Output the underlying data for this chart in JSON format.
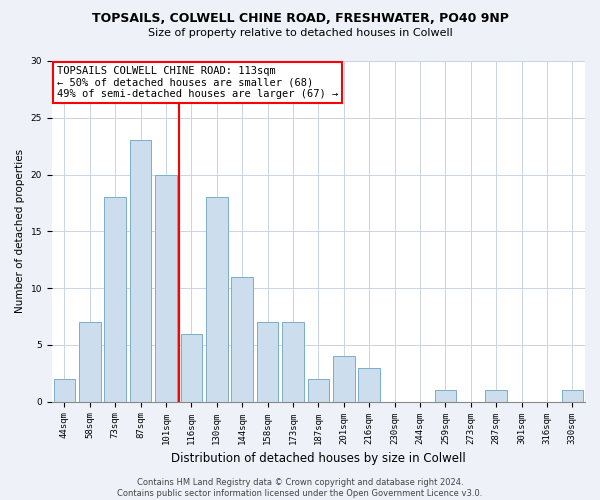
{
  "title_line1": "TOPSAILS, COLWELL CHINE ROAD, FRESHWATER, PO40 9NP",
  "title_line2": "Size of property relative to detached houses in Colwell",
  "xlabel": "Distribution of detached houses by size in Colwell",
  "ylabel": "Number of detached properties",
  "categories": [
    "44sqm",
    "58sqm",
    "73sqm",
    "87sqm",
    "101sqm",
    "116sqm",
    "130sqm",
    "144sqm",
    "158sqm",
    "173sqm",
    "187sqm",
    "201sqm",
    "216sqm",
    "230sqm",
    "244sqm",
    "259sqm",
    "273sqm",
    "287sqm",
    "301sqm",
    "316sqm",
    "330sqm"
  ],
  "values": [
    2,
    7,
    18,
    23,
    20,
    6,
    18,
    11,
    7,
    7,
    2,
    4,
    3,
    0,
    0,
    1,
    0,
    1,
    0,
    0,
    1
  ],
  "bar_color": "#ccdded",
  "bar_edge_color": "#7aaec8",
  "vline_index": 5,
  "annotation_text": "TOPSAILS COLWELL CHINE ROAD: 113sqm\n← 50% of detached houses are smaller (68)\n49% of semi-detached houses are larger (67) →",
  "annotation_box_color": "white",
  "annotation_box_edge_color": "red",
  "vline_color": "red",
  "ylim": [
    0,
    30
  ],
  "yticks": [
    0,
    5,
    10,
    15,
    20,
    25,
    30
  ],
  "footer_text": "Contains HM Land Registry data © Crown copyright and database right 2024.\nContains public sector information licensed under the Open Government Licence v3.0.",
  "background_color": "#eef2f8",
  "plot_background_color": "#ffffff",
  "grid_color": "#c8d4e4",
  "title_fontsize": 9,
  "subtitle_fontsize": 8,
  "ylabel_fontsize": 7.5,
  "xlabel_fontsize": 8.5,
  "tick_fontsize": 6.5,
  "annot_fontsize": 7.5,
  "footer_fontsize": 6
}
